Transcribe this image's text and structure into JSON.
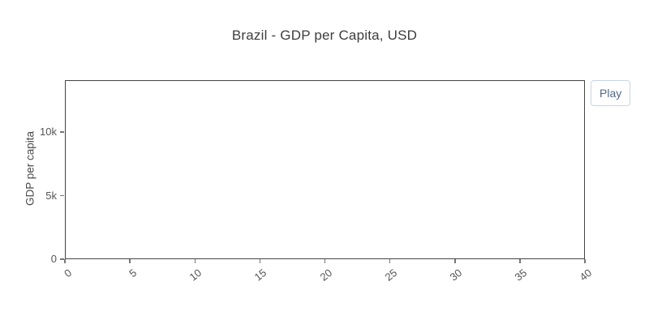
{
  "title": "Brazil - GDP per Capita, USD",
  "controls": {
    "play_label": "Play"
  },
  "chart_data": {
    "type": "line",
    "title": "Brazil - GDP per Capita, USD",
    "xlabel": "",
    "ylabel": "GDP per capita",
    "xlim": [
      0,
      40
    ],
    "ylim": [
      0,
      14080
    ],
    "grid": "off",
    "legend": "none",
    "plot_state": "empty-awaiting-play-animation",
    "xticks": {
      "values": [
        0,
        5,
        10,
        15,
        20,
        25,
        30,
        35,
        40
      ],
      "labels": [
        "0",
        "5",
        "10",
        "15",
        "20",
        "25",
        "30",
        "35",
        "40"
      ],
      "angle": -38
    },
    "yticks": {
      "values": [
        0,
        5000,
        10000
      ],
      "labels": [
        "0",
        "5k",
        "10k"
      ]
    },
    "series": []
  },
  "colors": {
    "background": "#ffffff",
    "axis_line": "#444444",
    "tick_mark": "#777777",
    "tick_text": "#555555",
    "title_text": "#3d3d3d",
    "play_border": "#c8d4e3",
    "play_text": "#506784"
  }
}
